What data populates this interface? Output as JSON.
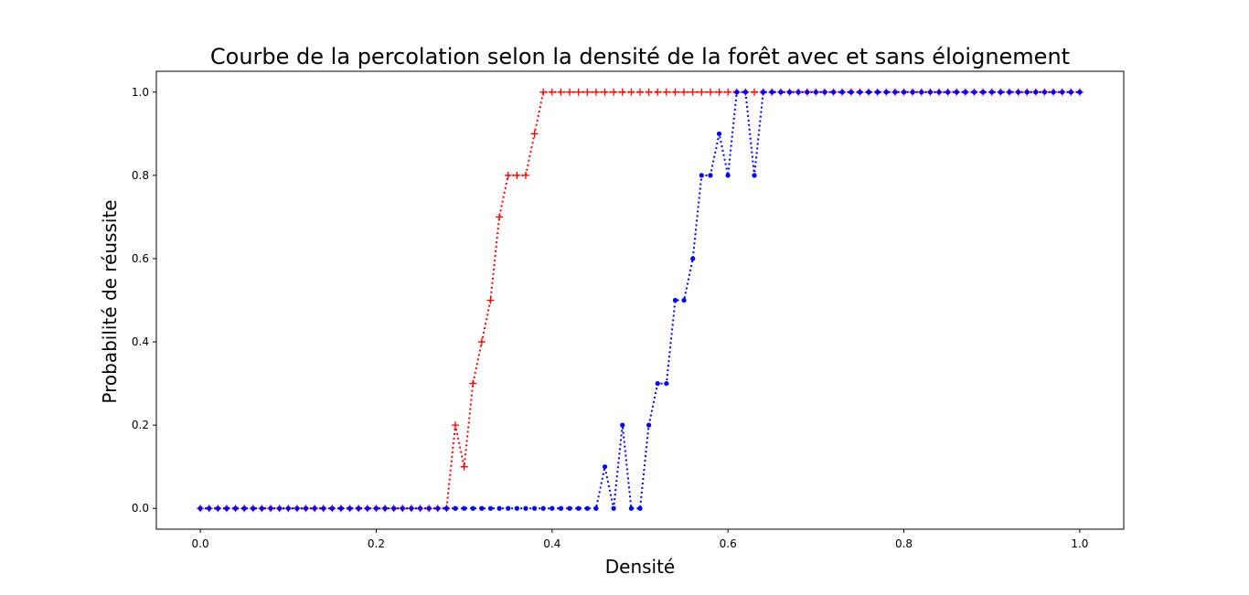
{
  "chart_data": {
    "type": "line",
    "title": "Courbe de la percolation selon la densité de la forêt avec et sans éloignement",
    "xlabel": "Densité",
    "ylabel": "Probabilité de réussite",
    "xlim": [
      -0.05,
      1.05
    ],
    "ylim": [
      -0.05,
      1.05
    ],
    "xticks": [
      "0.0",
      "0.2",
      "0.4",
      "0.6",
      "0.8",
      "1.0"
    ],
    "yticks": [
      "0.0",
      "0.2",
      "0.4",
      "0.6",
      "0.8",
      "1.0"
    ],
    "grid": false,
    "x": [
      0.0,
      0.01,
      0.02,
      0.03,
      0.04,
      0.05,
      0.06,
      0.07,
      0.08,
      0.09,
      0.1,
      0.11,
      0.12,
      0.13,
      0.14,
      0.15,
      0.16,
      0.17,
      0.18,
      0.19,
      0.2,
      0.21,
      0.22,
      0.23,
      0.24,
      0.25,
      0.26,
      0.27,
      0.28,
      0.29,
      0.3,
      0.31,
      0.32,
      0.33,
      0.34,
      0.35,
      0.36,
      0.37,
      0.38,
      0.39,
      0.4,
      0.41,
      0.42,
      0.43,
      0.44,
      0.45,
      0.46,
      0.47,
      0.48,
      0.49,
      0.5,
      0.51,
      0.52,
      0.53,
      0.54,
      0.55,
      0.56,
      0.57,
      0.58,
      0.59,
      0.6,
      0.61,
      0.62,
      0.63,
      0.64,
      0.65,
      0.66,
      0.67,
      0.68,
      0.69,
      0.7,
      0.71,
      0.72,
      0.73,
      0.74,
      0.75,
      0.76,
      0.77,
      0.78,
      0.79,
      0.8,
      0.81,
      0.82,
      0.83,
      0.84,
      0.85,
      0.86,
      0.87,
      0.88,
      0.89,
      0.9,
      0.91,
      0.92,
      0.93,
      0.94,
      0.95,
      0.96,
      0.97,
      0.98,
      0.99,
      1.0
    ],
    "series": [
      {
        "color": "#ff0000",
        "marker": "plus",
        "linestyle": "dotted",
        "values": [
          0,
          0,
          0,
          0,
          0,
          0,
          0,
          0,
          0,
          0,
          0,
          0,
          0,
          0,
          0,
          0,
          0,
          0,
          0,
          0,
          0,
          0,
          0,
          0,
          0,
          0,
          0,
          0,
          0,
          0.2,
          0.1,
          0.3,
          0.4,
          0.5,
          0.7,
          0.8,
          0.8,
          0.8,
          0.9,
          1,
          1,
          1,
          1,
          1,
          1,
          1,
          1,
          1,
          1,
          1,
          1,
          1,
          1,
          1,
          1,
          1,
          1,
          1,
          1,
          1,
          1,
          1,
          1,
          1,
          1,
          1,
          1,
          1,
          1,
          1,
          1,
          1,
          1,
          1,
          1,
          1,
          1,
          1,
          1,
          1,
          1,
          1,
          1,
          1,
          1,
          1,
          1,
          1,
          1,
          1,
          1,
          1,
          1,
          1,
          1,
          1,
          1,
          1,
          1,
          1,
          1
        ]
      },
      {
        "color": "#0000ff",
        "marker": "circle",
        "linestyle": "dotted",
        "values": [
          0,
          0,
          0,
          0,
          0,
          0,
          0,
          0,
          0,
          0,
          0,
          0,
          0,
          0,
          0,
          0,
          0,
          0,
          0,
          0,
          0,
          0,
          0,
          0,
          0,
          0,
          0,
          0,
          0,
          0,
          0,
          0,
          0,
          0,
          0,
          0,
          0,
          0,
          0,
          0,
          0,
          0,
          0,
          0,
          0,
          0,
          0.1,
          0,
          0.2,
          0,
          0,
          0.2,
          0.3,
          0.3,
          0.5,
          0.5,
          0.6,
          0.8,
          0.8,
          0.9,
          0.8,
          1,
          1,
          0.8,
          1,
          1,
          1,
          1,
          1,
          1,
          1,
          1,
          1,
          1,
          1,
          1,
          1,
          1,
          1,
          1,
          1,
          1,
          1,
          1,
          1,
          1,
          1,
          1,
          1,
          1,
          1,
          1,
          1,
          1,
          1,
          1,
          1,
          1,
          1,
          1,
          1
        ]
      }
    ]
  }
}
